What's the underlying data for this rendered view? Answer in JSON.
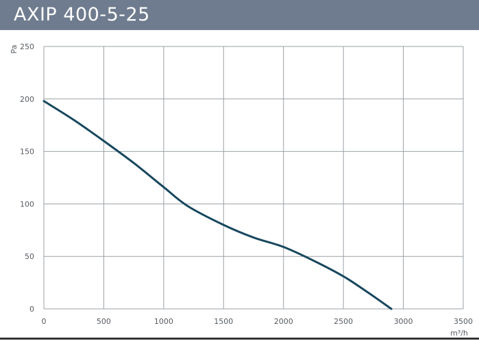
{
  "header": {
    "title": "AXIP 400-5-25",
    "background_color": "#6f7c8f",
    "text_color": "#ffffff"
  },
  "chart_data": {
    "type": "line",
    "title": "AXIP 400-5-25",
    "xlabel": "m³/h",
    "ylabel": "Pa",
    "xlim": [
      0,
      3500
    ],
    "ylim": [
      0,
      250
    ],
    "x_ticks": [
      0,
      500,
      1000,
      1500,
      2000,
      2500,
      3000,
      3500
    ],
    "y_ticks": [
      0,
      50,
      100,
      150,
      200,
      250
    ],
    "grid": true,
    "line_color": "#17475e",
    "series": [
      {
        "x": [
          0,
          250,
          500,
          750,
          1000,
          1200,
          1500,
          1750,
          2000,
          2250,
          2500,
          2700,
          2900
        ],
        "y": [
          198,
          180,
          160,
          139,
          116,
          98,
          80,
          68,
          59,
          46,
          31,
          16,
          0
        ]
      }
    ]
  }
}
